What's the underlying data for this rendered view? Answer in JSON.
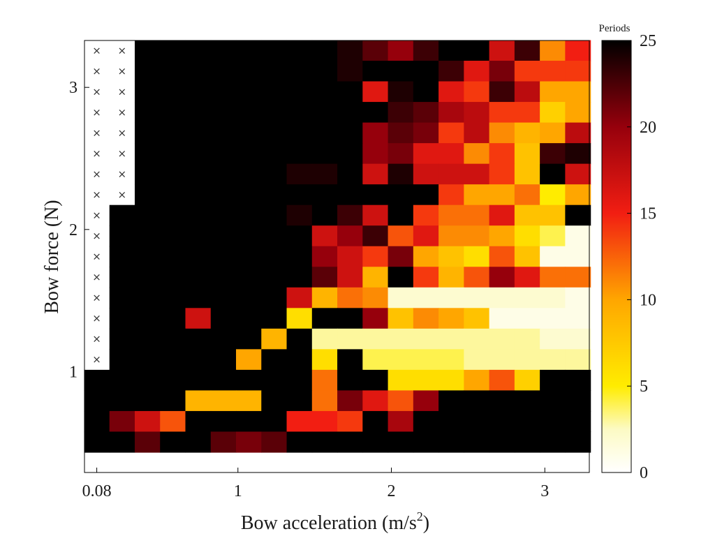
{
  "chart_data": {
    "type": "heatmap",
    "xlabel": "Bow acceleration (m/s",
    "xlabel_superscript": "2",
    "xlabel_suffix": ")",
    "ylabel": "Bow force (N)",
    "colorbar_title": "Periods",
    "colormap": "hot (reversed): white 0, yellow ~5, orange ~10, red ~15, dark red ~20, black 25",
    "x": [
      0.08,
      0.245,
      0.41,
      0.575,
      0.74,
      0.905,
      1.07,
      1.235,
      1.4,
      1.565,
      1.73,
      1.895,
      2.06,
      2.225,
      2.39,
      2.555,
      2.72,
      2.885,
      3.05,
      3.215
    ],
    "y": [
      3.26,
      3.115,
      2.97,
      2.825,
      2.68,
      2.535,
      2.39,
      2.245,
      2.1,
      1.955,
      1.81,
      1.665,
      1.52,
      1.375,
      1.23,
      1.085,
      0.94,
      0.795,
      0.65,
      0.505,
      0.36
    ],
    "x_ticks": [
      "0.08",
      "1",
      "2",
      "3"
    ],
    "x_tick_values": [
      0.08,
      1,
      2,
      3
    ],
    "y_ticks": [
      "1",
      "2",
      "3"
    ],
    "y_tick_values": [
      1,
      2,
      3
    ],
    "xlim": [
      0,
      3.29
    ],
    "ylim": [
      0.29,
      3.33
    ],
    "colorbar_ticks": [
      "0",
      "5",
      "10",
      "15",
      "20",
      "25"
    ],
    "colorbar_tick_values": [
      0,
      5,
      10,
      15,
      20,
      25
    ],
    "clim": [
      0,
      25
    ],
    "missing_marker": "×",
    "values": [
      [
        null,
        null,
        25,
        25,
        25,
        25,
        25,
        25,
        25,
        25,
        24,
        22,
        20,
        23,
        25,
        25,
        17,
        23,
        11,
        15
      ],
      [
        null,
        null,
        25,
        25,
        25,
        25,
        25,
        25,
        25,
        25,
        24,
        25,
        25,
        25,
        23,
        16,
        21,
        14,
        14,
        14
      ],
      [
        null,
        null,
        25,
        25,
        25,
        25,
        25,
        25,
        25,
        25,
        25,
        16,
        24,
        25,
        16,
        14,
        23,
        18,
        10,
        10
      ],
      [
        null,
        null,
        25,
        25,
        25,
        25,
        25,
        25,
        25,
        25,
        25,
        25,
        23,
        22,
        19,
        18,
        14,
        14,
        7,
        10
      ],
      [
        null,
        null,
        25,
        25,
        25,
        25,
        25,
        25,
        25,
        25,
        25,
        20,
        22,
        21,
        14,
        18,
        11,
        9,
        10,
        18
      ],
      [
        null,
        null,
        25,
        25,
        25,
        25,
        25,
        25,
        25,
        25,
        25,
        20,
        21,
        16,
        16,
        11,
        14,
        8,
        23,
        24
      ],
      [
        null,
        null,
        25,
        25,
        25,
        25,
        25,
        25,
        24,
        24,
        25,
        17,
        24,
        17,
        17,
        17,
        14,
        8,
        25,
        17
      ],
      [
        null,
        null,
        25,
        25,
        25,
        25,
        25,
        25,
        25,
        25,
        25,
        25,
        25,
        25,
        14,
        10,
        10,
        12,
        5,
        10
      ],
      [
        null,
        25,
        25,
        25,
        25,
        25,
        25,
        25,
        24,
        25,
        23,
        17,
        25,
        14,
        12,
        12,
        16,
        8,
        8,
        25
      ],
      [
        null,
        25,
        25,
        25,
        25,
        25,
        25,
        25,
        25,
        17,
        20,
        23,
        13,
        16,
        11,
        11,
        10,
        6,
        4,
        1
      ],
      [
        null,
        25,
        25,
        25,
        25,
        25,
        25,
        25,
        25,
        20,
        17,
        14,
        21,
        10,
        8,
        6,
        13,
        8,
        1,
        1
      ],
      [
        null,
        25,
        25,
        25,
        25,
        25,
        25,
        25,
        25,
        22,
        17,
        9,
        25,
        14,
        9,
        13,
        20,
        16,
        12,
        12
      ],
      [
        null,
        25,
        25,
        25,
        25,
        25,
        25,
        25,
        17,
        9,
        12,
        11,
        2,
        2,
        2,
        2,
        2,
        2,
        2,
        1
      ],
      [
        null,
        25,
        25,
        25,
        17,
        25,
        25,
        25,
        6,
        25,
        25,
        20,
        8,
        11,
        10,
        8,
        1,
        1,
        1,
        1
      ],
      [
        null,
        25,
        25,
        25,
        25,
        25,
        25,
        9,
        25,
        3,
        3,
        3,
        3,
        3,
        3,
        3,
        3,
        3,
        2,
        2
      ],
      [
        null,
        25,
        25,
        25,
        25,
        25,
        10,
        25,
        25,
        6,
        25,
        4,
        4,
        4,
        4,
        3,
        3,
        3,
        3,
        3
      ],
      [
        25,
        25,
        25,
        25,
        25,
        25,
        25,
        25,
        25,
        12,
        25,
        25,
        6,
        6,
        6,
        10,
        13,
        7,
        25,
        25
      ],
      [
        25,
        25,
        25,
        25,
        9,
        9,
        9,
        25,
        25,
        12,
        21,
        16,
        13,
        20,
        25,
        25,
        25,
        25,
        25,
        25
      ],
      [
        25,
        21,
        17,
        13,
        25,
        25,
        25,
        25,
        15,
        15,
        14,
        25,
        19,
        25,
        25,
        25,
        25,
        25,
        25,
        25
      ],
      [
        25,
        25,
        22,
        25,
        25,
        22,
        21,
        22,
        25,
        25,
        25,
        25,
        25,
        25,
        25,
        25,
        25,
        25,
        25,
        25
      ],
      [
        null,
        null,
        null,
        null,
        null,
        null,
        null,
        null,
        null,
        null,
        null,
        null,
        null,
        null,
        null,
        null,
        null,
        null,
        null,
        null
      ]
    ]
  }
}
